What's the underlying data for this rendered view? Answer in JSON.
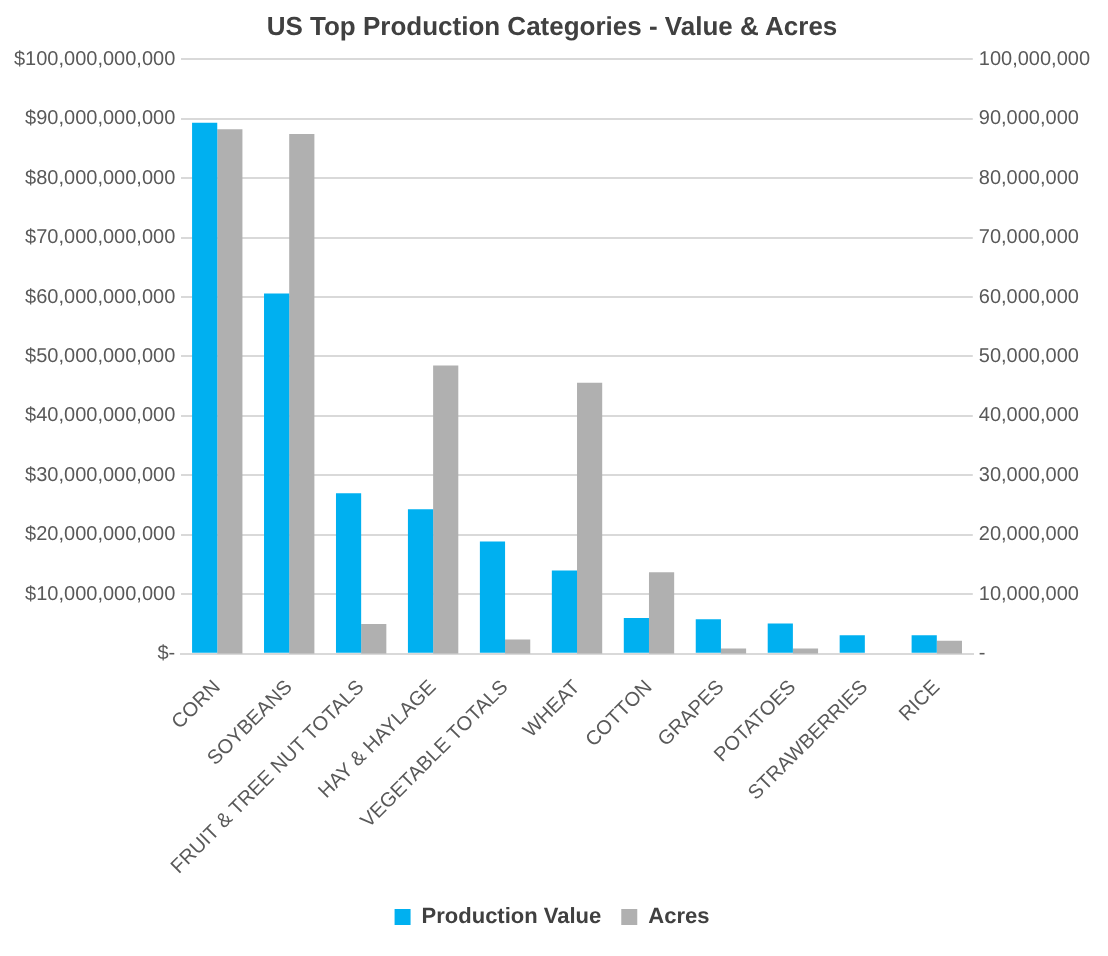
{
  "chart_data": {
    "type": "bar",
    "title": "US Top Production Categories - Value & Acres",
    "categories": [
      "CORN",
      "SOYBEANS",
      "FRUIT & TREE NUT TOTALS",
      "HAY & HAYLAGE",
      "VEGETABLE TOTALS",
      "WHEAT",
      "COTTON",
      "GRAPES",
      "POTATOES",
      "STRAWBERRIES",
      "RICE"
    ],
    "series": [
      {
        "name": "Production Value",
        "color": "#00b0f0",
        "values": [
          89300000000,
          60600000000,
          27000000000,
          24300000000,
          18900000000,
          14000000000,
          6000000000,
          5800000000,
          5100000000,
          3100000000,
          3100000000
        ]
      },
      {
        "name": "Acres",
        "color": "#b0b0b0",
        "axis": "y2",
        "values": [
          88200000,
          87400000,
          5000000,
          48500000,
          2400000,
          45600000,
          13700000,
          900000,
          900000,
          0,
          2200000
        ]
      }
    ],
    "ylim": [
      0,
      100000000000
    ],
    "yticks": [
      {
        "value": 0,
        "label": "$-"
      },
      {
        "value": 10000000000,
        "label": "$10,000,000,000"
      },
      {
        "value": 20000000000,
        "label": "$20,000,000,000"
      },
      {
        "value": 30000000000,
        "label": "$30,000,000,000"
      },
      {
        "value": 40000000000,
        "label": "$40,000,000,000"
      },
      {
        "value": 50000000000,
        "label": "$50,000,000,000"
      },
      {
        "value": 60000000000,
        "label": "$60,000,000,000"
      },
      {
        "value": 70000000000,
        "label": "$70,000,000,000"
      },
      {
        "value": 80000000000,
        "label": "$80,000,000,000"
      },
      {
        "value": 90000000000,
        "label": "$90,000,000,000"
      },
      {
        "value": 100000000000,
        "label": "$100,000,000,000"
      }
    ],
    "y2lim": [
      0,
      100000000
    ],
    "y2ticks": [
      {
        "value": 0,
        "label": "-"
      },
      {
        "value": 10000000,
        "label": "10,000,000"
      },
      {
        "value": 20000000,
        "label": "20,000,000"
      },
      {
        "value": 30000000,
        "label": "30,000,000"
      },
      {
        "value": 40000000,
        "label": "40,000,000"
      },
      {
        "value": 50000000,
        "label": "50,000,000"
      },
      {
        "value": 60000000,
        "label": "60,000,000"
      },
      {
        "value": 70000000,
        "label": "70,000,000"
      },
      {
        "value": 80000000,
        "label": "80,000,000"
      },
      {
        "value": 90000000,
        "label": "90,000,000"
      },
      {
        "value": 100000000,
        "label": "100,000,000"
      }
    ],
    "grid": "y",
    "legend": "bottom"
  }
}
